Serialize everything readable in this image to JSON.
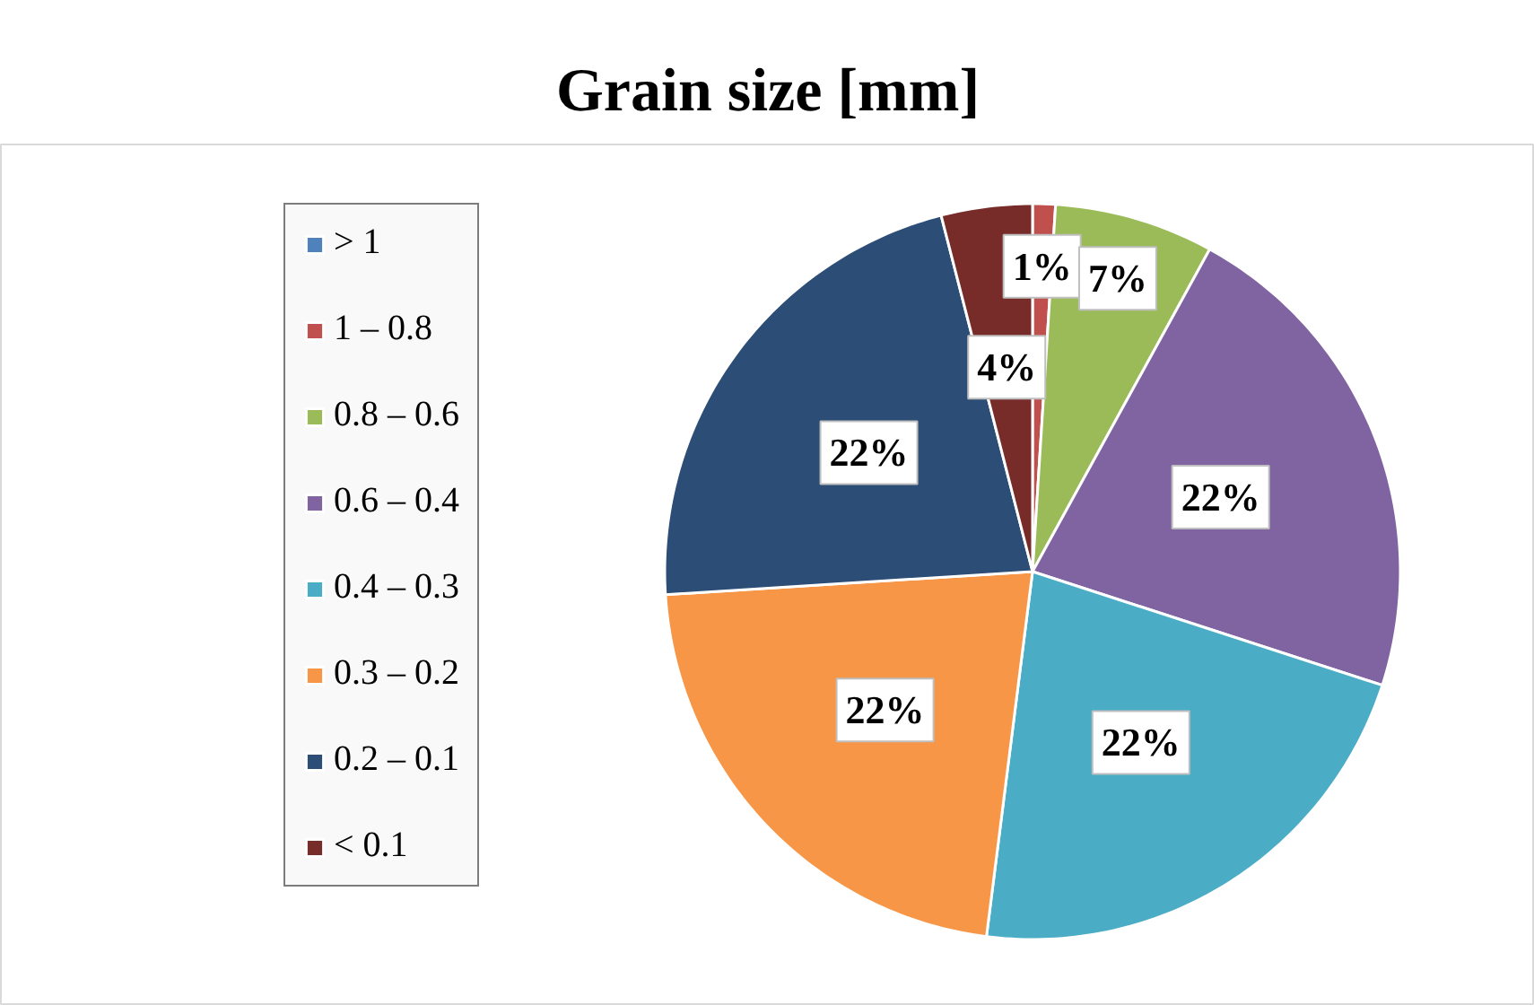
{
  "chart_data": {
    "type": "pie",
    "title": "Grain size [mm]",
    "categories": [
      "> 1",
      "1 – 0.8",
      "0.8 – 0.6",
      "0.6 – 0.4",
      "0.4 – 0.3",
      "0.3 – 0.2",
      "0.2 – 0.1",
      "< 0.1"
    ],
    "values": [
      0,
      1,
      7,
      22,
      22,
      22,
      22,
      4
    ],
    "colors": [
      "#4f81bd",
      "#c0504d",
      "#9bbb59",
      "#8064a2",
      "#4bacc6",
      "#f79646",
      "#2c4d75",
      "#772c2a"
    ],
    "value_labels": [
      null,
      "1%",
      "7%",
      "22%",
      "22%",
      "22%",
      "22%",
      "4%"
    ],
    "legend": "left"
  }
}
